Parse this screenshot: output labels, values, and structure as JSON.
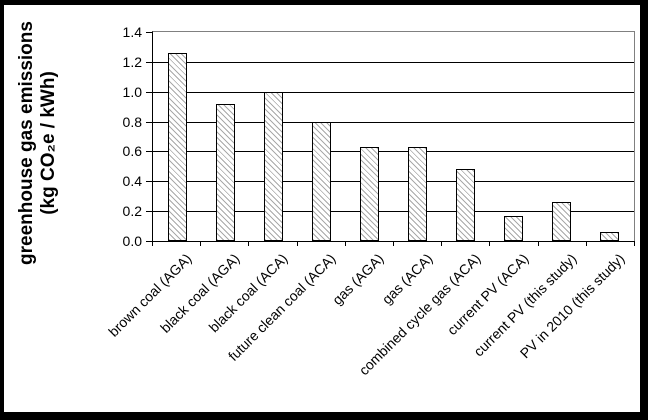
{
  "chart_data": {
    "type": "bar",
    "categories": [
      "brown coal (AGA)",
      "black coal (AGA)",
      "black coal (ACA)",
      "future clean coal (ACA)",
      "gas (AGA)",
      "gas (ACA)",
      "combined cycle gas (ACA)",
      "current PV (ACA)",
      "current PV (this study)",
      "PV in 2010 (this study)"
    ],
    "values": [
      1.26,
      0.92,
      1.0,
      0.8,
      0.63,
      0.63,
      0.48,
      0.17,
      0.26,
      0.06
    ],
    "title": "",
    "xlabel": "",
    "ylabel": "greenhouse gas emissions (kg CO₂e / kWh)",
    "ylabel_lines": [
      "greenhouse gas emissions",
      "(kg CO₂e / kWh)"
    ],
    "ylim": [
      0,
      1.4
    ],
    "ytick_step": 0.2,
    "ytick_labels": [
      "0.0",
      "0.2",
      "0.4",
      "0.6",
      "0.8",
      "1.0",
      "1.2",
      "1.4"
    ],
    "grid": true,
    "legend": false,
    "bar_hatch_direction": "diagonal-down",
    "x_label_rotation_deg": 45
  },
  "colors": {
    "frame": "#000000",
    "plot_border": "#808080",
    "gridline": "#000000",
    "bar_fill": "#ffffff",
    "bar_hatch": "#a9a9a9",
    "text": "#000000"
  }
}
